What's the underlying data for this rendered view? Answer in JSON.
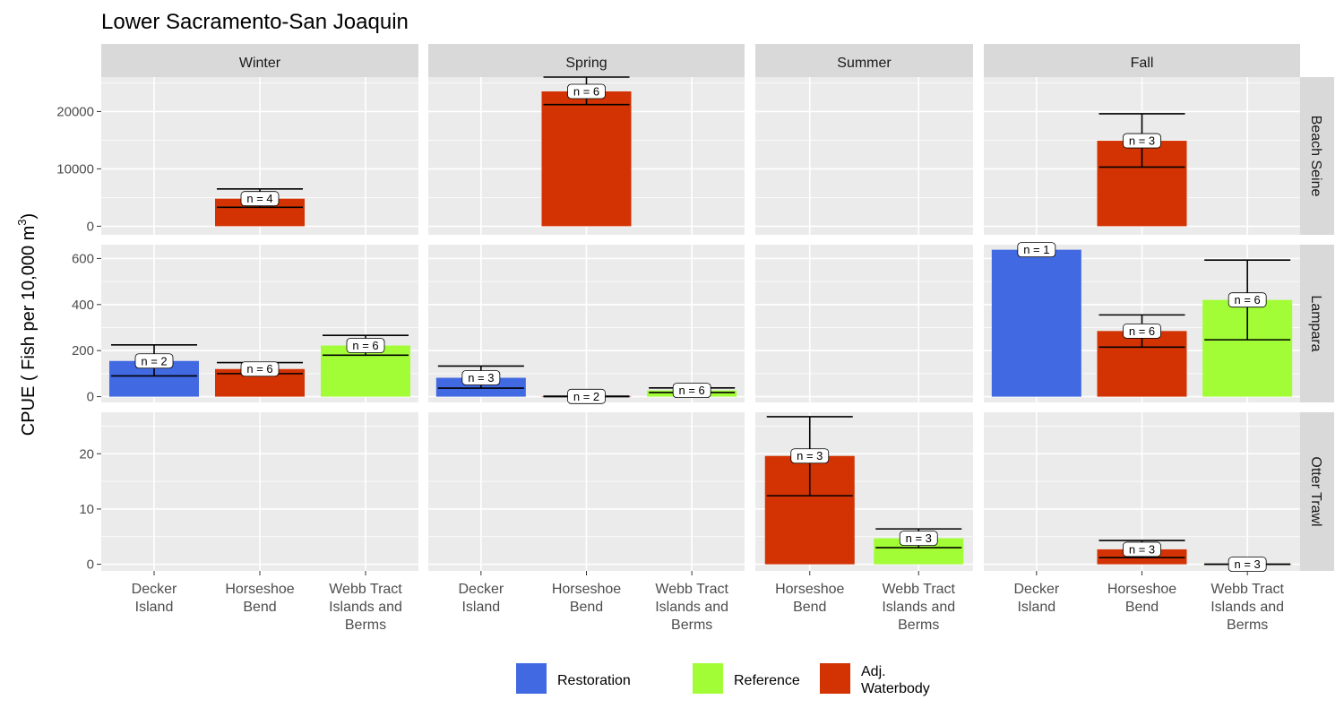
{
  "chart_data": {
    "type": "bar",
    "title": "Lower Sacramento-San Joaquin",
    "ylabel": "CPUE ( Fish per 10,000 m",
    "ylabel_superscript": "3",
    "ylabel_suffix": ")",
    "colors": {
      "Restoration": "#4169e1",
      "Reference": "#a2fd37",
      "Adj. Waterbody": "#d33303"
    },
    "legend": {
      "position": "bottom",
      "entries": [
        {
          "name": "Restoration",
          "lines": [
            "Restoration"
          ]
        },
        {
          "name": "Reference",
          "lines": [
            "Reference"
          ]
        },
        {
          "name": "Adj. Waterbody",
          "lines": [
            "Adj.",
            "Waterbody"
          ]
        }
      ]
    },
    "columns": [
      {
        "season": "Winter",
        "sites": [
          [
            "Decker",
            "Island"
          ],
          [
            "Horseshoe",
            "Bend"
          ],
          [
            "Webb Tract",
            "Islands and",
            "Berms"
          ]
        ]
      },
      {
        "season": "Spring",
        "sites": [
          [
            "Decker",
            "Island"
          ],
          [
            "Horseshoe",
            "Bend"
          ],
          [
            "Webb Tract",
            "Islands and",
            "Berms"
          ]
        ]
      },
      {
        "season": "Summer",
        "sites": [
          [
            "Horseshoe",
            "Bend"
          ],
          [
            "Webb Tract",
            "Islands and",
            "Berms"
          ]
        ]
      },
      {
        "season": "Fall",
        "sites": [
          [
            "Decker",
            "Island"
          ],
          [
            "Horseshoe",
            "Bend"
          ],
          [
            "Webb Tract",
            "Islands and",
            "Berms"
          ]
        ]
      }
    ],
    "rows": [
      {
        "gear": "Beach Seine",
        "ylim": [
          -1500,
          26000
        ],
        "ticks": [
          0,
          10000,
          20000
        ]
      },
      {
        "gear": "Lampara",
        "ylim": [
          -25,
          660
        ],
        "ticks": [
          0,
          200,
          400,
          600
        ]
      },
      {
        "gear": "Otter Trawl",
        "ylim": [
          -1.2,
          27.5
        ],
        "ticks": [
          0,
          10,
          20
        ]
      }
    ],
    "bars": [
      {
        "row": 0,
        "col": 0,
        "site": 1,
        "type": "Adj. Waterbody",
        "value": 4800,
        "err_low": 3300,
        "err_high": 6500,
        "n_label": "n =  4"
      },
      {
        "row": 0,
        "col": 1,
        "site": 1,
        "type": "Adj. Waterbody",
        "value": 23500,
        "err_low": 21200,
        "err_high": 26000,
        "n_label": "n =  6"
      },
      {
        "row": 0,
        "col": 3,
        "site": 1,
        "type": "Adj. Waterbody",
        "value": 14900,
        "err_low": 10300,
        "err_high": 19600,
        "n_label": "n =  3"
      },
      {
        "row": 1,
        "col": 0,
        "site": 0,
        "type": "Restoration",
        "value": 155,
        "err_low": 90,
        "err_high": 225,
        "n_label": "n =  2"
      },
      {
        "row": 1,
        "col": 0,
        "site": 1,
        "type": "Adj. Waterbody",
        "value": 120,
        "err_low": 100,
        "err_high": 148,
        "n_label": "n =  6"
      },
      {
        "row": 1,
        "col": 0,
        "site": 2,
        "type": "Reference",
        "value": 222,
        "err_low": 180,
        "err_high": 266,
        "n_label": "n =  6"
      },
      {
        "row": 1,
        "col": 1,
        "site": 0,
        "type": "Restoration",
        "value": 82,
        "err_low": 37,
        "err_high": 133,
        "n_label": "n =  3"
      },
      {
        "row": 1,
        "col": 1,
        "site": 1,
        "type": "Adj. Waterbody",
        "value": 1,
        "err_low": 0,
        "err_high": 2,
        "n_label": "n =  2"
      },
      {
        "row": 1,
        "col": 1,
        "site": 2,
        "type": "Reference",
        "value": 27,
        "err_low": 18,
        "err_high": 38,
        "n_label": "n =  6"
      },
      {
        "row": 1,
        "col": 3,
        "site": 0,
        "type": "Restoration",
        "value": 638,
        "err_low": null,
        "err_high": null,
        "n_label": "n =  1"
      },
      {
        "row": 1,
        "col": 3,
        "site": 1,
        "type": "Adj. Waterbody",
        "value": 285,
        "err_low": 215,
        "err_high": 355,
        "n_label": "n =  6"
      },
      {
        "row": 1,
        "col": 3,
        "site": 2,
        "type": "Reference",
        "value": 420,
        "err_low": 247,
        "err_high": 593,
        "n_label": "n =  6"
      },
      {
        "row": 2,
        "col": 2,
        "site": 0,
        "type": "Adj. Waterbody",
        "value": 19.6,
        "err_low": 12.4,
        "err_high": 26.7,
        "n_label": "n =  3"
      },
      {
        "row": 2,
        "col": 2,
        "site": 1,
        "type": "Reference",
        "value": 4.7,
        "err_low": 3.0,
        "err_high": 6.4,
        "n_label": "n =  3"
      },
      {
        "row": 2,
        "col": 3,
        "site": 1,
        "type": "Adj. Waterbody",
        "value": 2.7,
        "err_low": 1.2,
        "err_high": 4.3,
        "n_label": "n =  3"
      },
      {
        "row": 2,
        "col": 3,
        "site": 2,
        "type": "Reference",
        "value": 0,
        "err_low": 0,
        "err_high": 0,
        "n_label": "n =  3"
      }
    ]
  }
}
